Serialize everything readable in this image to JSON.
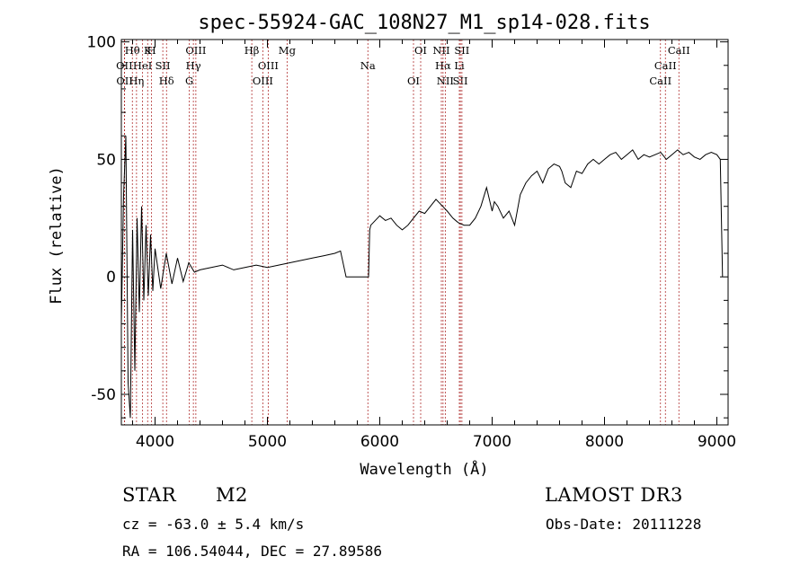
{
  "chart_data": {
    "type": "line",
    "title": "spec-55924-GAC_108N27_M1_sp14-028.fits",
    "xlabel": "Wavelength (Å)",
    "ylabel": "Flux (relative)",
    "xlim": [
      3700,
      9100
    ],
    "ylim": [
      -63,
      101
    ],
    "x_ticks": [
      4000,
      5000,
      6000,
      7000,
      8000,
      9000
    ],
    "y_ticks": [
      -50,
      0,
      50,
      100
    ],
    "series": [
      {
        "name": "flux",
        "x": [
          3700,
          3720,
          3740,
          3760,
          3780,
          3800,
          3820,
          3840,
          3860,
          3880,
          3900,
          3920,
          3940,
          3960,
          3980,
          4000,
          4050,
          4100,
          4150,
          4200,
          4250,
          4300,
          4350,
          4400,
          4500,
          4600,
          4700,
          4800,
          4900,
          5000,
          5100,
          5200,
          5300,
          5400,
          5500,
          5600,
          5650,
          5700,
          5701,
          5800,
          5900,
          5910,
          5920,
          6000,
          6050,
          6100,
          6150,
          6200,
          6250,
          6300,
          6350,
          6400,
          6450,
          6500,
          6560,
          6600,
          6650,
          6700,
          6750,
          6800,
          6850,
          6900,
          6950,
          7000,
          7020,
          7050,
          7100,
          7150,
          7200,
          7250,
          7300,
          7350,
          7400,
          7450,
          7500,
          7550,
          7600,
          7620,
          7650,
          7700,
          7750,
          7800,
          7850,
          7900,
          7950,
          8000,
          8050,
          8100,
          8150,
          8200,
          8250,
          8300,
          8350,
          8400,
          8450,
          8500,
          8550,
          8600,
          8650,
          8700,
          8750,
          8800,
          8850,
          8900,
          8950,
          9000,
          9030,
          9050
        ],
        "y": [
          -20,
          35,
          60,
          -45,
          -60,
          20,
          -40,
          25,
          -15,
          30,
          -10,
          22,
          -8,
          18,
          -6,
          12,
          -5,
          10,
          -3,
          8,
          -2,
          6,
          2,
          3,
          4,
          5,
          3,
          4,
          5,
          4,
          5,
          6,
          7,
          8,
          9,
          10,
          11,
          0,
          0,
          0,
          0,
          20,
          22,
          26,
          24,
          25,
          22,
          20,
          22,
          25,
          28,
          27,
          30,
          33,
          30,
          28,
          25,
          23,
          22,
          22,
          25,
          30,
          38,
          28,
          32,
          30,
          25,
          28,
          22,
          35,
          40,
          43,
          45,
          40,
          46,
          48,
          47,
          45,
          40,
          38,
          45,
          44,
          48,
          50,
          48,
          50,
          52,
          53,
          50,
          52,
          54,
          50,
          52,
          51,
          52,
          53,
          50,
          52,
          54,
          52,
          53,
          51,
          50,
          52,
          53,
          52,
          50,
          0
        ]
      }
    ],
    "lines": [
      {
        "name": "Hθ",
        "wl": 3798
      },
      {
        "name": "OII",
        "wl": 3727
      },
      {
        "name": "OII",
        "wl": 3729
      },
      {
        "name": "K",
        "wl": 3934
      },
      {
        "name": "HeI",
        "wl": 3889
      },
      {
        "name": "Hη",
        "wl": 3835
      },
      {
        "name": "H",
        "wl": 3969
      },
      {
        "name": "SII",
        "wl": 4069
      },
      {
        "name": "Hδ",
        "wl": 4102
      },
      {
        "name": "OIII",
        "wl": 4363
      },
      {
        "name": "Hγ",
        "wl": 4341
      },
      {
        "name": "G",
        "wl": 4305
      },
      {
        "name": "Hβ",
        "wl": 4861
      },
      {
        "name": "OIII",
        "wl": 5007
      },
      {
        "name": "OIII",
        "wl": 4959
      },
      {
        "name": "Mg",
        "wl": 5175
      },
      {
        "name": "Na",
        "wl": 5894
      },
      {
        "name": "OI",
        "wl": 6300
      },
      {
        "name": "OI",
        "wl": 6364
      },
      {
        "name": "Hα",
        "wl": 6563
      },
      {
        "name": "SII",
        "wl": 6717
      },
      {
        "name": "NII",
        "wl": 6548
      },
      {
        "name": "Li",
        "wl": 6708
      },
      {
        "name": "NII",
        "wl": 6583
      },
      {
        "name": "SII",
        "wl": 6731
      },
      {
        "name": "CaII",
        "wl": 8542
      },
      {
        "name": "CaII",
        "wl": 8498
      },
      {
        "name": "CaII",
        "wl": 8662
      }
    ]
  },
  "info": {
    "class": "STAR",
    "subclass": "M2",
    "survey": "LAMOST DR3",
    "cz": "cz = -63.0 ± 5.4 km/s",
    "obs_date": "Obs-Date: 20111228",
    "coords": "RA = 106.54044, DEC =  27.89586"
  }
}
